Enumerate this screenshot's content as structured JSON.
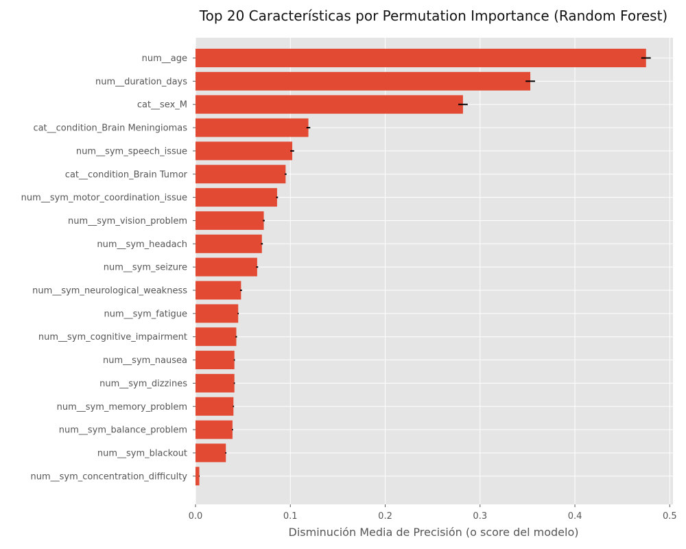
{
  "chart_data": {
    "type": "bar",
    "orientation": "horizontal",
    "title": "Top 20 Características por Permutation Importance (Random Forest)",
    "xlabel": "Disminución Media de Precisión (o score del modelo)",
    "ylabel": "",
    "xlim": [
      0,
      0.5
    ],
    "xticks": [
      "0.0",
      "0.1",
      "0.2",
      "0.3",
      "0.4",
      "0.5"
    ],
    "grid": true,
    "bar_color": "#E24A33",
    "background_color": "#E5E5E5",
    "errorbar_color": "#000000",
    "categories": [
      "num__age",
      "num__duration_days",
      "cat__sex_M",
      "cat__condition_Brain Meningiomas",
      "num__sym_speech_issue",
      "cat__condition_Brain Tumor",
      "num__sym_motor_coordination_issue",
      "num__sym_vision_problem",
      "num__sym_headach",
      "num__sym_seizure",
      "num__sym_neurological_weakness",
      "num__sym_fatigue",
      "num__sym_cognitive_impairment",
      "num__sym_nausea",
      "num__sym_dizzines",
      "num__sym_memory_problem",
      "num__sym_balance_problem",
      "num__sym_blackout",
      "num__sym_concentration_difficulty"
    ],
    "values": [
      0.475,
      0.353,
      0.282,
      0.119,
      0.102,
      0.095,
      0.086,
      0.072,
      0.07,
      0.065,
      0.048,
      0.045,
      0.043,
      0.041,
      0.041,
      0.04,
      0.039,
      0.032,
      0.004
    ],
    "errors": [
      0.005,
      0.005,
      0.005,
      0.002,
      0.002,
      0.001,
      0.001,
      0.001,
      0.001,
      0.001,
      0.001,
      0.0006,
      0.0008,
      0.0006,
      0.0006,
      0.0006,
      0.0006,
      0.0006,
      0.0003
    ]
  }
}
